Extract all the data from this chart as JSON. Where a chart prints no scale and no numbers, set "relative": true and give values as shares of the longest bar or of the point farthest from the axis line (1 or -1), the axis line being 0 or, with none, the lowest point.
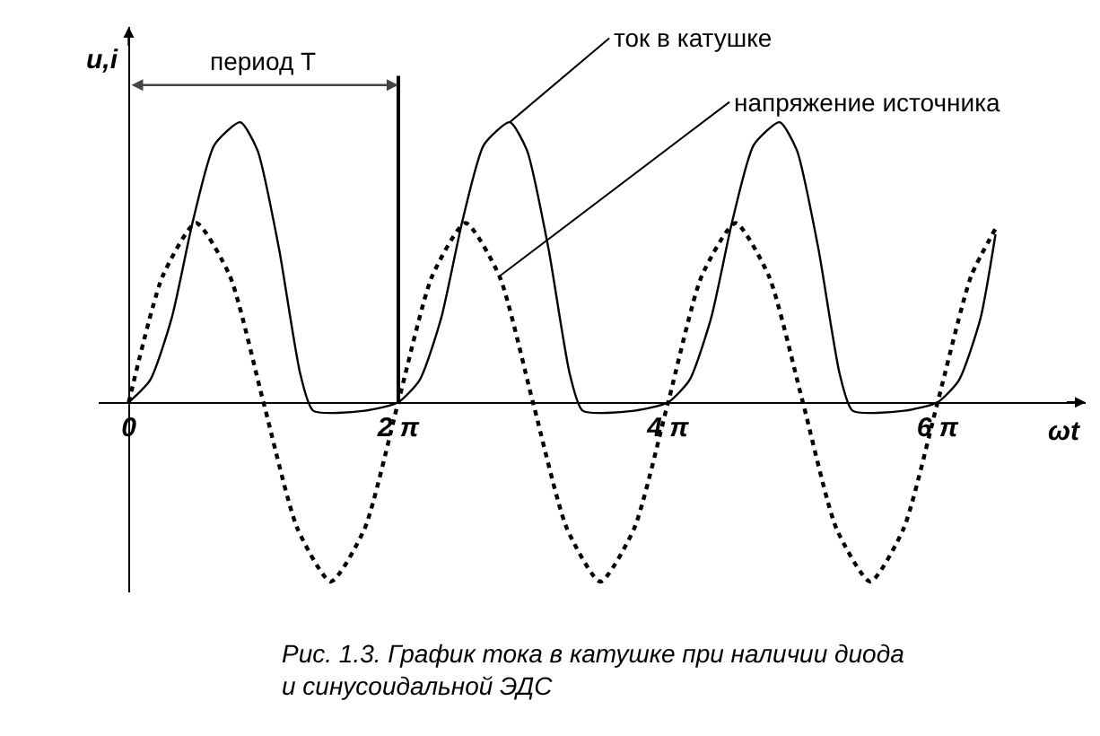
{
  "chart_data": {
    "type": "line",
    "relative": true,
    "xlabel": "ωt",
    "ylabel": "u,i",
    "xlim": [
      -0.7,
      22.3
    ],
    "xticks": [
      0,
      {
        "value": 6.283,
        "label": "2 π"
      },
      {
        "value": 12.566,
        "label": "4 π"
      },
      {
        "value": 18.85,
        "label": "6 π"
      }
    ],
    "series": [
      {
        "name": "ток в катушке",
        "color": "#000000",
        "line_style": "solid",
        "x": [
          0,
          0.5,
          1.0,
          1.5,
          2.0,
          2.6,
          3.0,
          3.5,
          4.0,
          4.3,
          5.5,
          6.28,
          6.78,
          7.28,
          7.78,
          8.28,
          8.88,
          9.28,
          9.78,
          10.28,
          10.58,
          11.78,
          12.57,
          13.07,
          13.57,
          14.07,
          14.57,
          15.17,
          15.57,
          16.07,
          16.57,
          16.87,
          18.07,
          18.85,
          19.35,
          19.85,
          20.2
        ],
        "values": [
          0,
          0.08,
          0.3,
          0.65,
          0.92,
          1.0,
          0.9,
          0.55,
          0.1,
          -0.03,
          -0.03,
          0,
          0.08,
          0.3,
          0.65,
          0.92,
          1.0,
          0.9,
          0.55,
          0.1,
          -0.03,
          -0.03,
          0,
          0.08,
          0.3,
          0.65,
          0.92,
          1.0,
          0.9,
          0.55,
          0.1,
          -0.03,
          -0.03,
          0,
          0.08,
          0.3,
          0.6
        ]
      },
      {
        "name": "напряжение источника",
        "color": "#000000",
        "line_style": "dotted",
        "x": [
          0,
          0.79,
          1.57,
          2.36,
          3.14,
          3.93,
          4.71,
          5.5,
          6.28,
          7.07,
          7.85,
          8.64,
          9.42,
          10.21,
          10.99,
          11.78,
          12.57,
          13.35,
          14.14,
          14.92,
          15.71,
          16.49,
          17.28,
          18.06,
          18.85,
          19.63,
          20.2
        ],
        "values": [
          0,
          0.45,
          0.64,
          0.45,
          0,
          -0.45,
          -0.64,
          -0.45,
          0,
          0.45,
          0.64,
          0.45,
          0,
          -0.45,
          -0.64,
          -0.45,
          0,
          0.45,
          0.64,
          0.45,
          0,
          -0.45,
          -0.64,
          -0.45,
          0,
          0.45,
          0.62
        ]
      }
    ],
    "legend": false,
    "grid": false,
    "ref_lines": [
      {
        "axis": "x",
        "value": 6.283
      }
    ],
    "annotations": [
      "период T",
      "Рис. 1.3. График тока в катушке при наличии диода\nи синусоидальной ЭДС"
    ]
  }
}
